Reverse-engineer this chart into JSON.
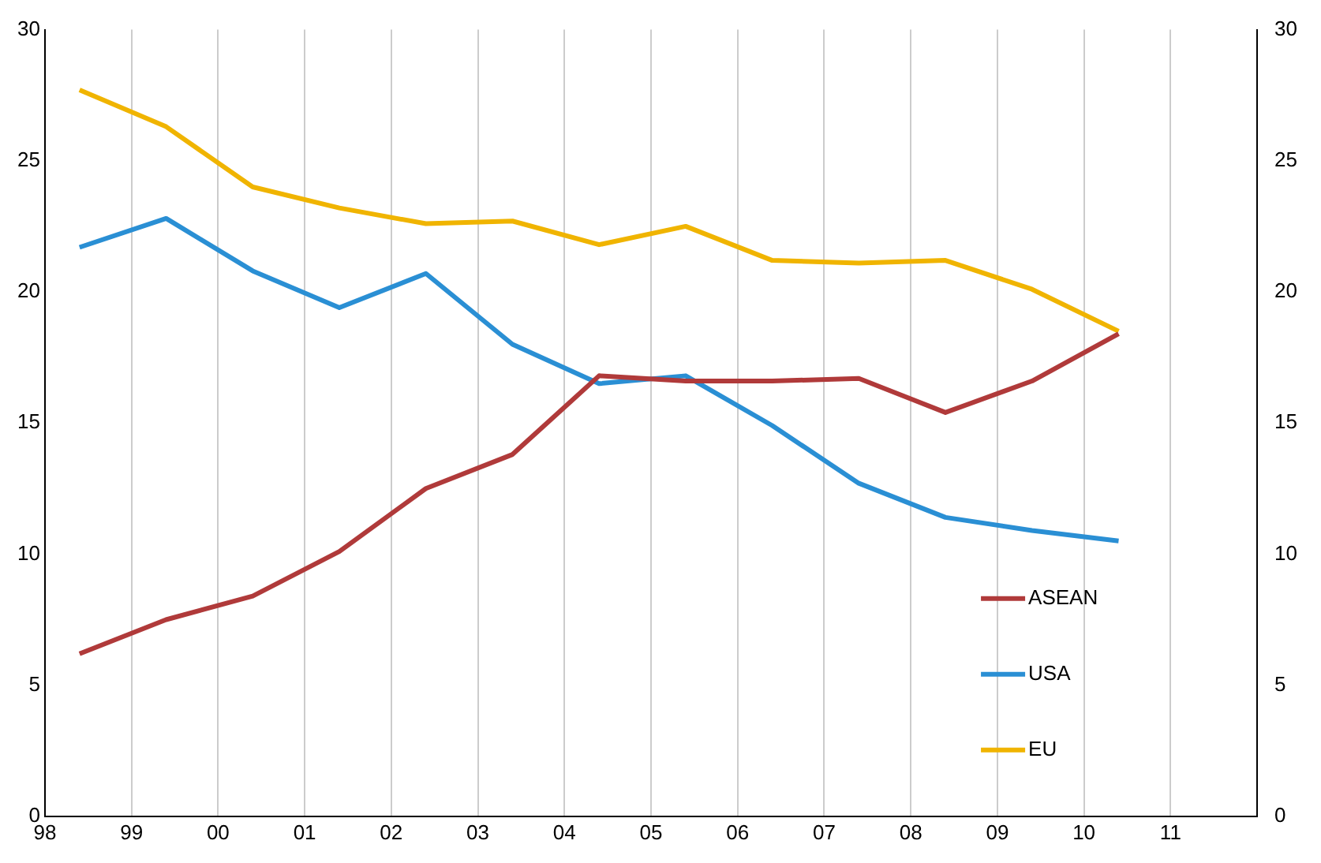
{
  "chart_data": {
    "type": "line",
    "x": [
      1998.4,
      1999.4,
      2000.4,
      2001.4,
      2002.4,
      2003.4,
      2004.4,
      2005.4,
      2006.4,
      2007.4,
      2008.4,
      2009.4,
      2010.4
    ],
    "series": [
      {
        "name": "ASEAN",
        "color": "#b03a3a",
        "values": [
          6.2,
          7.5,
          8.4,
          10.1,
          12.5,
          13.8,
          16.8,
          16.6,
          16.6,
          16.7,
          15.4,
          16.6,
          18.4
        ]
      },
      {
        "name": "USA",
        "color": "#2a8fd4",
        "values": [
          21.7,
          22.8,
          20.8,
          19.4,
          20.7,
          18.0,
          16.5,
          16.8,
          14.9,
          12.7,
          11.4,
          10.9,
          10.5
        ]
      },
      {
        "name": "EU",
        "color": "#f0b400",
        "values": [
          27.7,
          26.3,
          24.0,
          23.2,
          22.6,
          22.7,
          21.8,
          22.5,
          21.2,
          21.1,
          21.2,
          20.1,
          18.5
        ]
      }
    ],
    "xlim": [
      1998,
      2012
    ],
    "xticks": [
      {
        "value": 1998,
        "label": "98"
      },
      {
        "value": 1999,
        "label": "99"
      },
      {
        "value": 2000,
        "label": "00"
      },
      {
        "value": 2001,
        "label": "01"
      },
      {
        "value": 2002,
        "label": "02"
      },
      {
        "value": 2003,
        "label": "03"
      },
      {
        "value": 2004,
        "label": "04"
      },
      {
        "value": 2005,
        "label": "05"
      },
      {
        "value": 2006,
        "label": "06"
      },
      {
        "value": 2007,
        "label": "07"
      },
      {
        "value": 2008,
        "label": "08"
      },
      {
        "value": 2009,
        "label": "09"
      },
      {
        "value": 2010,
        "label": "10"
      },
      {
        "value": 2011,
        "label": "11"
      },
      {
        "value": 2012,
        "label": null
      }
    ],
    "ylim": [
      0,
      30
    ],
    "yticks": [
      0,
      5,
      10,
      15,
      20,
      25,
      30
    ],
    "y2lim": [
      0,
      30
    ],
    "y2ticks": [
      0,
      5,
      10,
      15,
      20,
      25,
      30
    ],
    "grid": "x",
    "legend": "bottom right",
    "marker": "none",
    "line_style": "solid"
  }
}
